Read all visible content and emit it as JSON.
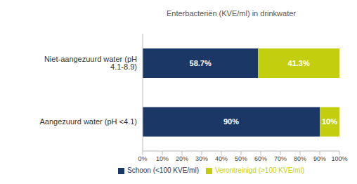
{
  "chart_data": {
    "type": "bar",
    "title": "Enterbacteriën (KVE/ml) in drinkwater",
    "orientation": "horizontal",
    "stacked": true,
    "data_labels": true,
    "grid": false,
    "legend": "bottom",
    "categories": [
      "Niet-aangezuurd water (pH 4.1-8.9)",
      "Aangezuurd water (pH <4.1)"
    ],
    "series": [
      {
        "name": "Schoon (<100 KVE/ml)",
        "color": "#1b3766",
        "values": [
          58.7,
          90
        ],
        "value_labels": [
          "58.7%",
          "90%"
        ]
      },
      {
        "name": "Verontreinigd (>100 KVE/ml)",
        "color": "#c3cf0e",
        "values": [
          41.3,
          10
        ],
        "value_labels": [
          "41.3%",
          "10%"
        ]
      }
    ],
    "xlim": [
      0,
      100
    ],
    "xticks": [
      {
        "value": 0,
        "label": "0%"
      },
      {
        "value": 10,
        "label": "10%"
      },
      {
        "value": 20,
        "label": "20%"
      },
      {
        "value": 30,
        "label": "30%"
      },
      {
        "value": 40,
        "label": "40%"
      },
      {
        "value": 50,
        "label": "50%"
      },
      {
        "value": 60,
        "label": "60%"
      },
      {
        "value": 70,
        "label": "70%"
      },
      {
        "value": 80,
        "label": "80%"
      },
      {
        "value": 90,
        "label": "90%"
      },
      {
        "value": 100,
        "label": "100%"
      }
    ]
  }
}
